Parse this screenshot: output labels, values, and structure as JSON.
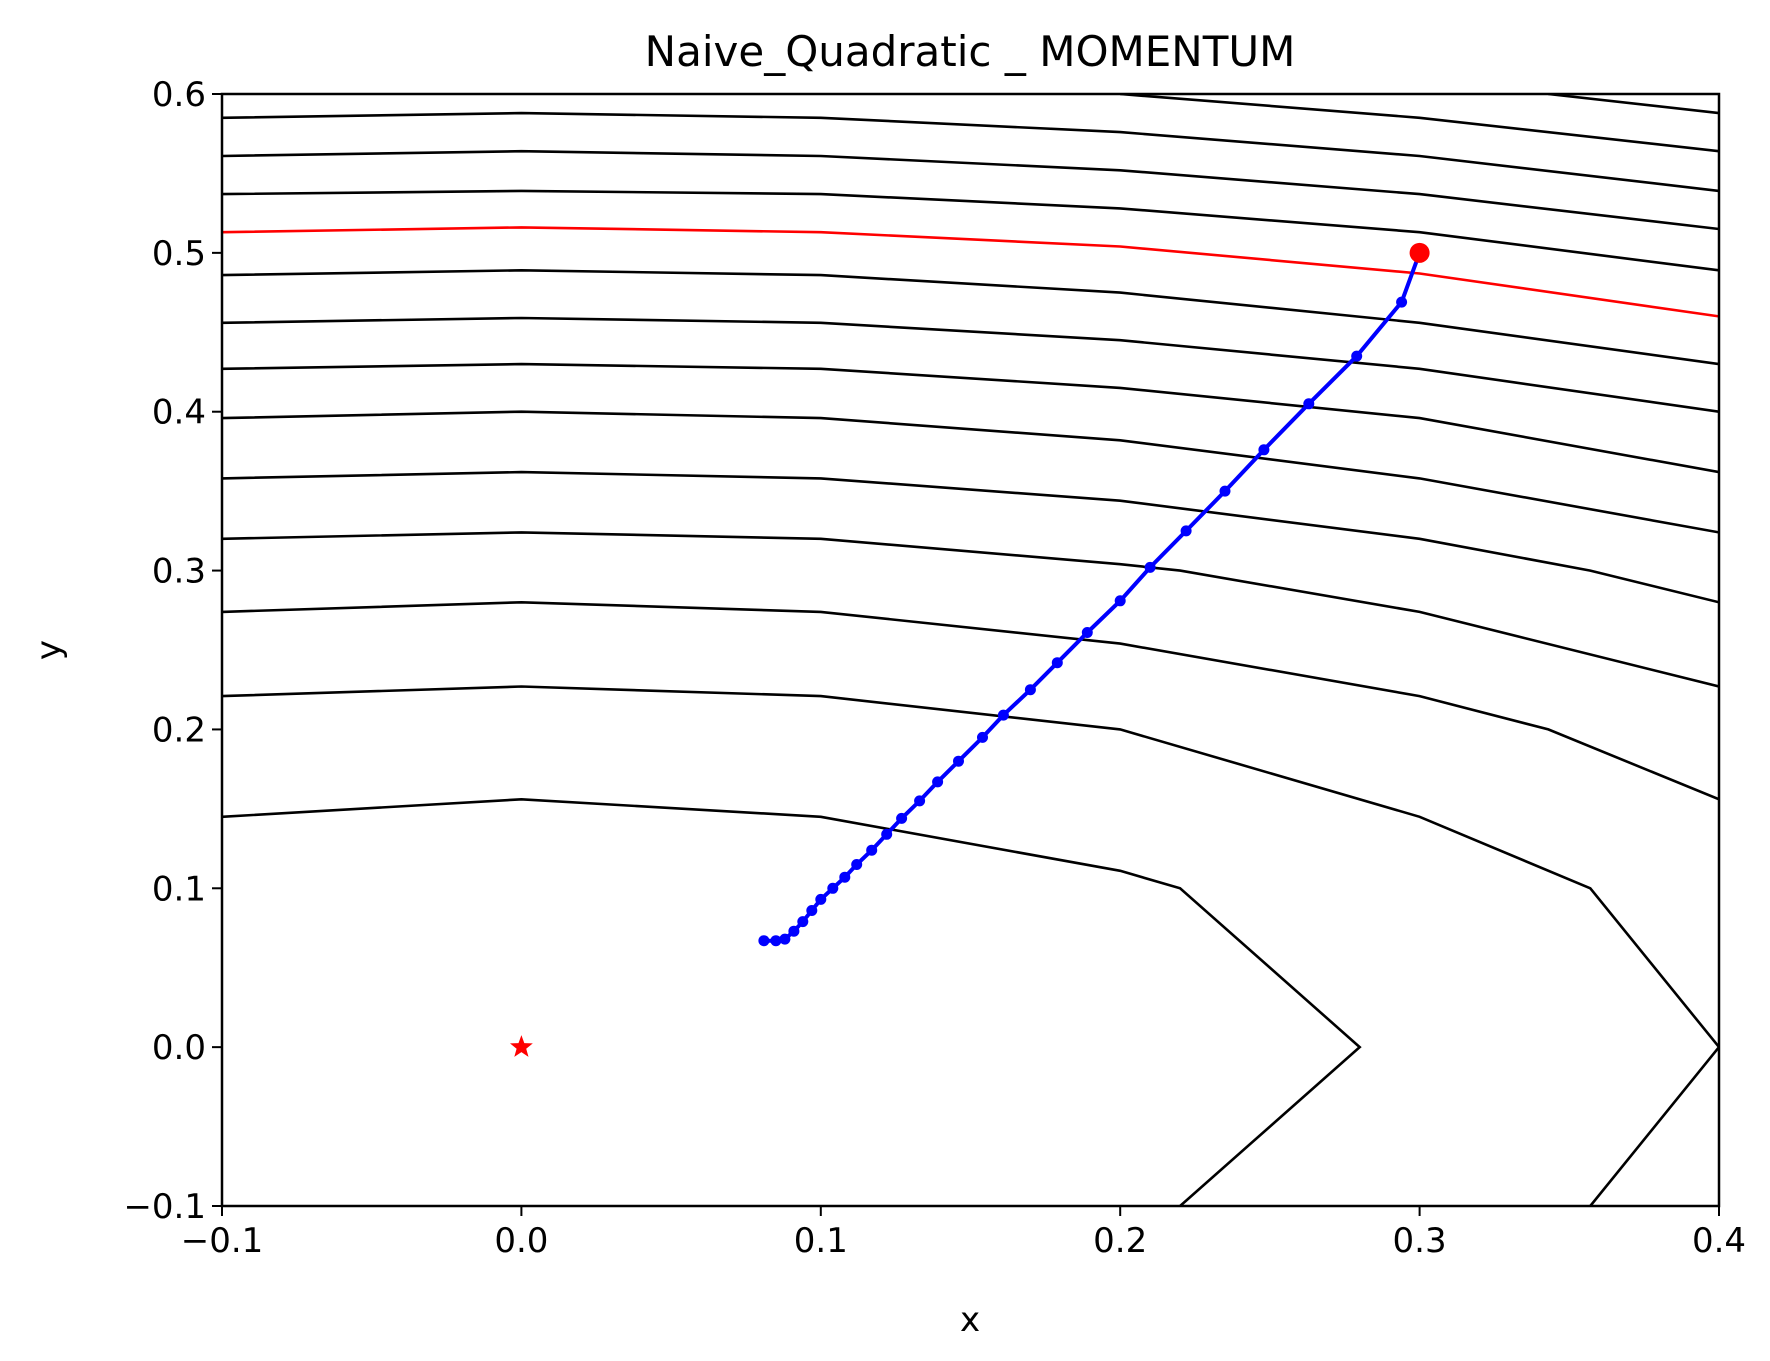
{
  "chart_data": {
    "type": "line",
    "title": "Naive_Quadratic _ MOMENTUM",
    "xlabel": "x",
    "ylabel": "y",
    "xlim": [
      -0.1,
      0.4
    ],
    "ylim": [
      -0.1,
      0.6
    ],
    "grid": false,
    "x_ticks": [
      "−0.1",
      "0.0",
      "0.1",
      "0.2",
      "0.3",
      "0.4"
    ],
    "x_tick_values": [
      -0.1,
      0.0,
      0.1,
      0.2,
      0.3,
      0.4
    ],
    "y_ticks": [
      "−0.1",
      "0.0",
      "0.1",
      "0.2",
      "0.3",
      "0.4",
      "0.5",
      "0.6"
    ],
    "y_tick_values": [
      -0.1,
      0.0,
      0.1,
      0.2,
      0.3,
      0.4,
      0.5,
      0.6
    ],
    "colors": {
      "contour": "#000000",
      "highlight_contour": "#ff0000",
      "path": "#0000ff",
      "start": "#ff0000",
      "optimum": "#ff0000"
    },
    "contours": [
      {
        "x": [
          -0.1,
          0.0,
          0.1,
          0.2,
          0.22,
          0.28,
          0.22
        ],
        "y": [
          0.145,
          0.156,
          0.145,
          0.111,
          0.1,
          0.0,
          -0.1
        ]
      },
      {
        "x": [
          -0.1,
          0.0,
          0.1,
          0.2,
          0.3,
          0.357,
          0.4,
          0.357
        ],
        "y": [
          0.221,
          0.227,
          0.221,
          0.2,
          0.145,
          0.1,
          0.0,
          -0.1
        ]
      },
      {
        "x": [
          -0.1,
          0.0,
          0.1,
          0.2,
          0.3,
          0.343,
          0.4
        ],
        "y": [
          0.274,
          0.28,
          0.274,
          0.254,
          0.221,
          0.2,
          0.156
        ]
      },
      {
        "x": [
          -0.1,
          0.0,
          0.1,
          0.2,
          0.22,
          0.3,
          0.4
        ],
        "y": [
          0.32,
          0.324,
          0.32,
          0.304,
          0.3,
          0.274,
          0.227
        ]
      },
      {
        "x": [
          -0.1,
          0.0,
          0.1,
          0.2,
          0.3,
          0.357,
          0.4
        ],
        "y": [
          0.358,
          0.362,
          0.358,
          0.344,
          0.32,
          0.3,
          0.28
        ]
      },
      {
        "x": [
          -0.1,
          0.0,
          0.1,
          0.2,
          0.3,
          0.4
        ],
        "y": [
          0.396,
          0.4,
          0.396,
          0.382,
          0.358,
          0.324
        ]
      },
      {
        "x": [
          -0.1,
          0.0,
          0.1,
          0.2,
          0.3,
          0.4
        ],
        "y": [
          0.427,
          0.43,
          0.427,
          0.415,
          0.396,
          0.362
        ]
      },
      {
        "x": [
          -0.1,
          0.0,
          0.1,
          0.2,
          0.3,
          0.4
        ],
        "y": [
          0.456,
          0.459,
          0.456,
          0.445,
          0.427,
          0.4
        ]
      },
      {
        "x": [
          -0.1,
          0.0,
          0.1,
          0.2,
          0.3,
          0.4
        ],
        "y": [
          0.486,
          0.489,
          0.486,
          0.475,
          0.456,
          0.43
        ]
      },
      {
        "x": [
          -0.1,
          0.0,
          0.1,
          0.2,
          0.3,
          0.4
        ],
        "y": [
          0.537,
          0.539,
          0.537,
          0.528,
          0.513,
          0.489
        ]
      },
      {
        "x": [
          -0.1,
          0.0,
          0.1,
          0.2,
          0.3,
          0.4
        ],
        "y": [
          0.561,
          0.564,
          0.561,
          0.552,
          0.537,
          0.515
        ]
      },
      {
        "x": [
          -0.1,
          0.0,
          0.1,
          0.2,
          0.3,
          0.4
        ],
        "y": [
          0.585,
          0.588,
          0.585,
          0.576,
          0.561,
          0.539
        ]
      },
      {
        "x": [
          0.2,
          0.3,
          0.4
        ],
        "y": [
          0.6,
          0.585,
          0.564
        ]
      },
      {
        "x": [
          0.343,
          0.4
        ],
        "y": [
          0.6,
          0.588
        ]
      }
    ],
    "highlight_contour": {
      "x": [
        -0.1,
        0.0,
        0.1,
        0.2,
        0.3,
        0.4
      ],
      "y": [
        0.513,
        0.516,
        0.513,
        0.504,
        0.487,
        0.46
      ]
    },
    "path": {
      "x": [
        0.3,
        0.294,
        0.279,
        0.263,
        0.248,
        0.235,
        0.222,
        0.21,
        0.2,
        0.189,
        0.179,
        0.17,
        0.161,
        0.154,
        0.146,
        0.139,
        0.133,
        0.127,
        0.122,
        0.117,
        0.112,
        0.108,
        0.104,
        0.1,
        0.097,
        0.094,
        0.091,
        0.088,
        0.085,
        0.081
      ],
      "y": [
        0.5,
        0.469,
        0.435,
        0.405,
        0.376,
        0.35,
        0.325,
        0.302,
        0.281,
        0.261,
        0.242,
        0.225,
        0.209,
        0.195,
        0.18,
        0.167,
        0.155,
        0.144,
        0.134,
        0.124,
        0.115,
        0.107,
        0.1,
        0.093,
        0.086,
        0.079,
        0.073,
        0.068,
        0.067,
        0.067
      ]
    },
    "start": {
      "x": 0.3,
      "y": 0.5
    },
    "optimum": {
      "x": 0.0,
      "y": 0.0
    }
  }
}
